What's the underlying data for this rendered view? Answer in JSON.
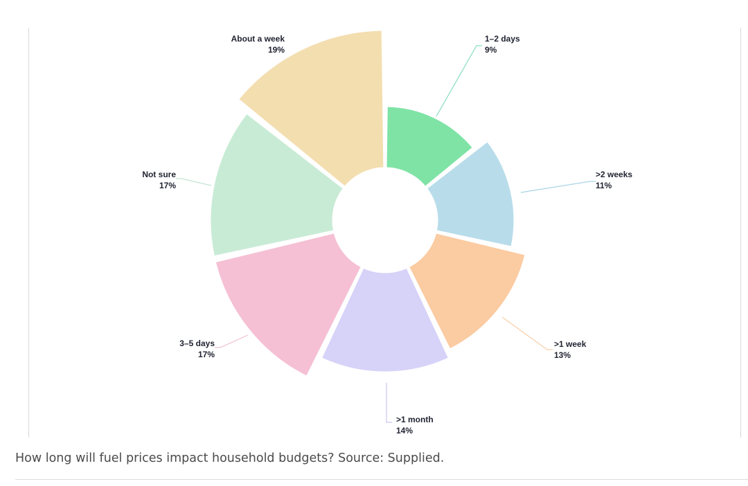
{
  "chart_data": {
    "type": "pie",
    "variant": "polar-area-donut",
    "title": "",
    "categories": [
      "1–2 days",
      ">2 weeks",
      ">1 week",
      ">1 month",
      "3–5 days",
      "Not sure",
      "About a week"
    ],
    "values": [
      9,
      11,
      13,
      14,
      17,
      17,
      19
    ],
    "value_labels": [
      "9%",
      "11%",
      "13%",
      "14%",
      "17%",
      "17%",
      "19%"
    ],
    "colors": [
      "#7fe3a6",
      "#b8dcea",
      "#fbcba2",
      "#d6d2f8",
      "#f5c0d3",
      "#c8ebd5",
      "#f3deb0"
    ],
    "line_colors": [
      "#88dcc0",
      "#a8d4e4",
      "#f6cfa8",
      "#c9c4f0",
      "#f1bfcf",
      "#c5e3d2",
      "#ecd8ab"
    ]
  },
  "caption": "How long will fuel prices impact household budgets? Source: Supplied."
}
